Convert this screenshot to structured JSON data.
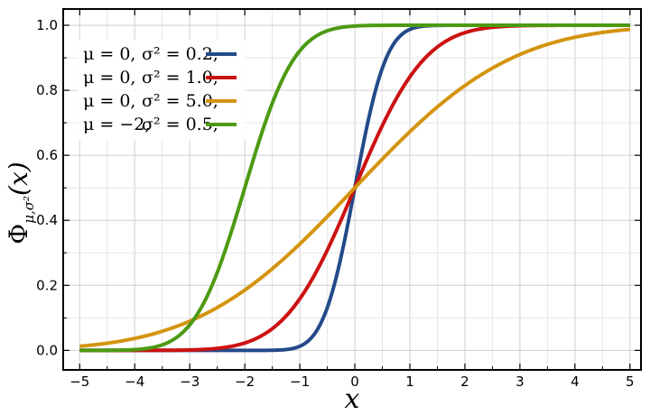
{
  "chart_data": {
    "type": "line",
    "title": "",
    "xlabel": "x",
    "ylabel": {
      "main": "Φ",
      "subscript": "μ,σ²",
      "arg": "(x)"
    },
    "xlim": [
      -5.3,
      5.2
    ],
    "ylim": [
      -0.06,
      1.05
    ],
    "grid": true,
    "legend_position": "top-left",
    "x_ticks": [
      {
        "value": -5,
        "label": "−5"
      },
      {
        "value": -4,
        "label": "−4"
      },
      {
        "value": -3,
        "label": "−3"
      },
      {
        "value": -2,
        "label": "−2"
      },
      {
        "value": -1,
        "label": "−1"
      },
      {
        "value": 0,
        "label": "0"
      },
      {
        "value": 1,
        "label": "1"
      },
      {
        "value": 2,
        "label": "2"
      },
      {
        "value": 3,
        "label": "3"
      },
      {
        "value": 4,
        "label": "4"
      },
      {
        "value": 5,
        "label": "5"
      }
    ],
    "y_ticks": [
      {
        "value": 0.0,
        "label": "0.0"
      },
      {
        "value": 0.2,
        "label": "0.2"
      },
      {
        "value": 0.4,
        "label": "0.4"
      },
      {
        "value": 0.6,
        "label": "0.6"
      },
      {
        "value": 0.8,
        "label": "0.8"
      },
      {
        "value": 1.0,
        "label": "1.0"
      }
    ],
    "x_range": [
      -5,
      5
    ],
    "series": [
      {
        "mu_label": "μ = 0,",
        "sigma_label": "σ² = 0.2,",
        "mu": 0,
        "variance": 0.2,
        "color": "#234a89",
        "points": [
          [
            -5,
            0.0
          ],
          [
            -2,
            0.0
          ],
          [
            -1.5,
            0.0004
          ],
          [
            -1,
            0.0127
          ],
          [
            -0.75,
            0.0468
          ],
          [
            -0.5,
            0.1318
          ],
          [
            -0.25,
            0.2877
          ],
          [
            0,
            0.5
          ],
          [
            0.25,
            0.7123
          ],
          [
            0.5,
            0.8682
          ],
          [
            0.75,
            0.9532
          ],
          [
            1,
            0.9873
          ],
          [
            1.5,
            0.9996
          ],
          [
            2,
            1.0
          ],
          [
            5,
            1.0
          ]
        ]
      },
      {
        "mu_label": "μ = 0,",
        "sigma_label": "σ² = 1.0,",
        "mu": 0,
        "variance": 1.0,
        "color": "#cc1111",
        "points": [
          [
            -5,
            0.0
          ],
          [
            -4,
            0.0
          ],
          [
            -3,
            0.0013
          ],
          [
            -2.5,
            0.0062
          ],
          [
            -2,
            0.0228
          ],
          [
            -1.5,
            0.0668
          ],
          [
            -1,
            0.1587
          ],
          [
            -0.5,
            0.3085
          ],
          [
            0,
            0.5
          ],
          [
            0.5,
            0.6915
          ],
          [
            1,
            0.8413
          ],
          [
            1.5,
            0.9332
          ],
          [
            2,
            0.9772
          ],
          [
            2.5,
            0.9938
          ],
          [
            3,
            0.9987
          ],
          [
            4,
            1.0
          ],
          [
            5,
            1.0
          ]
        ]
      },
      {
        "mu_label": "μ = 0,",
        "sigma_label": "σ² = 5.0,",
        "mu": 0,
        "variance": 5.0,
        "color": "#d4940f",
        "points": [
          [
            -5,
            0.0127
          ],
          [
            -4,
            0.0368
          ],
          [
            -3,
            0.0899
          ],
          [
            -2,
            0.1855
          ],
          [
            -1,
            0.3274
          ],
          [
            0,
            0.5
          ],
          [
            1,
            0.6726
          ],
          [
            2,
            0.8145
          ],
          [
            3,
            0.9101
          ],
          [
            4,
            0.9632
          ],
          [
            5,
            0.9873
          ]
        ]
      },
      {
        "mu_label": "μ = −2,",
        "sigma_label": "σ² = 0.5,",
        "mu": -2,
        "variance": 0.5,
        "color": "#4c9a12",
        "points": [
          [
            -5,
            0.0
          ],
          [
            -4,
            0.0023
          ],
          [
            -3.5,
            0.017
          ],
          [
            -3,
            0.0786
          ],
          [
            -2.5,
            0.2398
          ],
          [
            -2,
            0.5
          ],
          [
            -1.5,
            0.7602
          ],
          [
            -1,
            0.9214
          ],
          [
            -0.5,
            0.983
          ],
          [
            0,
            0.9977
          ],
          [
            1,
            1.0
          ],
          [
            5,
            1.0
          ]
        ]
      }
    ]
  }
}
